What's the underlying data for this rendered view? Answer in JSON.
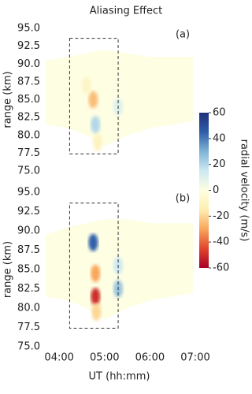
{
  "chart_data": [
    {
      "type": "heatmap",
      "title": "Aliasing Effect",
      "panel_label": "(a)",
      "ylabel": "range (km)",
      "xlim": [
        3.65,
        7.0
      ],
      "ylim": [
        75,
        95
      ],
      "yticks": [
        {
          "value": 75,
          "label": "75.0"
        },
        {
          "value": 77.5,
          "label": "77.5"
        },
        {
          "value": 80,
          "label": "80.0"
        },
        {
          "value": 82.5,
          "label": "82.5"
        },
        {
          "value": 85,
          "label": "85.0"
        },
        {
          "value": 87.5,
          "label": "87.5"
        },
        {
          "value": 90,
          "label": "90.0"
        },
        {
          "value": 92.5,
          "label": "92.5"
        },
        {
          "value": 95,
          "label": "95.0"
        }
      ],
      "coverage": {
        "x": [
          3.7,
          4.2,
          4.6,
          5.0,
          5.5,
          6.0,
          6.5,
          6.95
        ],
        "top": [
          90.5,
          91,
          91.5,
          92,
          91.5,
          91,
          91,
          91
        ],
        "bottom": [
          81.5,
          81,
          80,
          78.5,
          80,
          81,
          81.5,
          82
        ]
      },
      "box": {
        "x": [
          4.23,
          5.3
        ],
        "y": [
          77.4,
          93.6
        ]
      },
      "points": {
        "x": [
          4.75,
          4.8,
          4.85,
          5.3,
          4.6
        ],
        "y": [
          85,
          81.5,
          79,
          84,
          87
        ],
        "values": [
          -25,
          20,
          -10,
          10,
          -8
        ]
      }
    },
    {
      "type": "heatmap",
      "panel_label": "(b)",
      "ylabel": "range (km)",
      "xlabel": "UT (hh:mm)",
      "xlim": [
        3.65,
        7.0
      ],
      "ylim": [
        75,
        95
      ],
      "xticks": [
        {
          "value": 4,
          "label": "04:00"
        },
        {
          "value": 5,
          "label": "05:00"
        },
        {
          "value": 6,
          "label": "06:00"
        },
        {
          "value": 7,
          "label": "07:00"
        }
      ],
      "yticks": [
        {
          "value": 75,
          "label": "75.0"
        },
        {
          "value": 77.5,
          "label": "77.5"
        },
        {
          "value": 80,
          "label": "80.0"
        },
        {
          "value": 82.5,
          "label": "82.5"
        },
        {
          "value": 85,
          "label": "85.0"
        },
        {
          "value": 87.5,
          "label": "87.5"
        },
        {
          "value": 90,
          "label": "90.0"
        },
        {
          "value": 92.5,
          "label": "92.5"
        },
        {
          "value": 95,
          "label": "95.0"
        }
      ],
      "coverage": {
        "x": [
          3.7,
          4.2,
          4.6,
          5.0,
          5.5,
          6.0,
          6.5,
          6.95
        ],
        "top": [
          89.5,
          90.5,
          91,
          91.5,
          91.5,
          91,
          91,
          91
        ],
        "bottom": [
          81.5,
          81,
          80,
          78.5,
          80,
          81,
          81.5,
          82
        ]
      },
      "box": {
        "x": [
          4.23,
          5.3
        ],
        "y": [
          77.4,
          93.6
        ]
      },
      "points": {
        "x": [
          4.75,
          4.8,
          4.8,
          5.3,
          5.3,
          4.82
        ],
        "y": [
          88.5,
          81.5,
          84.5,
          82.5,
          85.5,
          79.5
        ],
        "values": [
          45,
          -50,
          -30,
          25,
          15,
          -20
        ]
      }
    },
    {
      "type": "colorbar",
      "label": "radial velocity (m/s)",
      "clim": [
        -60,
        60
      ],
      "ticks": [
        -60,
        -40,
        -20,
        0,
        20,
        40,
        60
      ],
      "colormap": [
        "#a50026",
        "#e0452d",
        "#f9a55c",
        "#fdeeb0",
        "#fefee0",
        "#cde9f2",
        "#7fb3d5",
        "#2f5ea8",
        "#1f2f7a"
      ]
    }
  ]
}
